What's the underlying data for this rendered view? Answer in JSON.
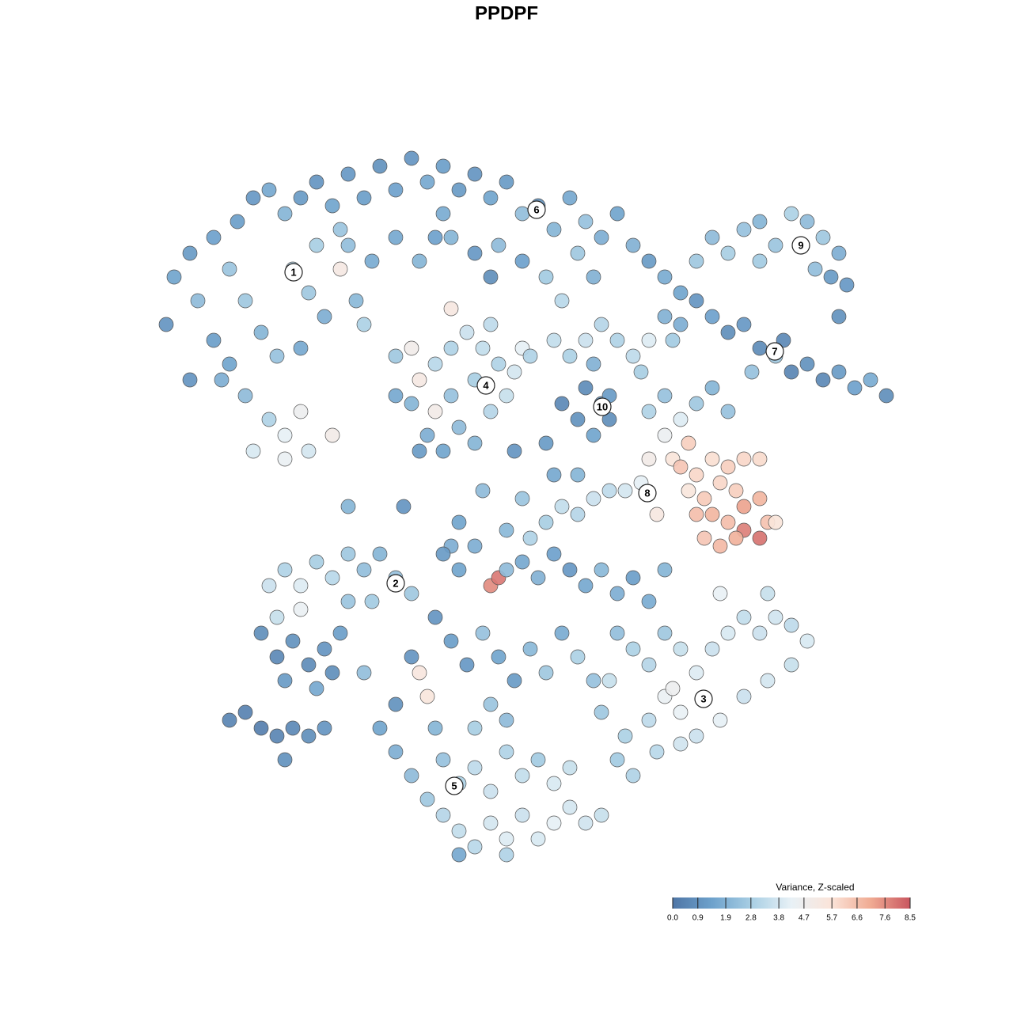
{
  "chart_data": {
    "type": "scatter",
    "title": "PPDPF",
    "xlim": [
      0,
      128
    ],
    "ylim": [
      128,
      0
    ],
    "x": [
      22,
      24,
      21,
      25,
      27,
      29,
      30,
      32,
      34,
      36,
      38,
      40,
      42,
      44,
      46,
      48,
      50,
      52,
      54,
      31,
      33,
      35,
      29,
      31,
      34,
      36,
      39,
      42,
      38,
      27,
      28,
      37,
      40,
      43,
      43,
      45,
      41,
      38,
      24,
      32,
      36,
      44,
      47,
      50,
      53,
      55,
      39,
      46,
      56,
      58,
      60,
      62,
      64,
      66,
      68,
      70,
      72,
      74,
      76,
      78,
      80,
      82,
      84,
      57,
      60,
      63,
      66,
      69,
      71,
      73,
      62,
      56,
      75,
      86,
      88,
      90,
      92,
      94,
      96,
      98,
      100,
      102,
      104,
      106,
      105,
      103,
      107,
      106,
      96,
      86,
      88,
      90,
      92,
      94,
      96,
      98,
      100,
      102,
      104,
      106,
      108,
      110,
      112,
      99,
      85,
      84,
      95,
      50,
      52,
      53,
      55,
      57,
      59,
      61,
      63,
      60,
      57,
      55,
      52,
      54,
      58,
      62,
      64,
      60,
      56,
      53,
      50,
      57,
      62,
      65,
      66,
      67,
      70,
      72,
      74,
      76,
      78,
      80,
      82,
      81,
      75,
      74,
      76,
      77,
      75,
      73,
      71,
      77,
      82,
      84,
      86,
      88,
      90,
      92,
      84,
      85,
      87,
      86,
      88,
      90,
      92,
      94,
      96,
      87,
      89,
      91,
      93,
      90,
      92,
      94,
      96,
      97,
      94,
      96,
      89,
      91,
      93,
      98,
      88,
      82,
      79,
      81,
      77,
      75,
      73,
      71,
      69,
      67,
      83,
      44,
      51,
      58,
      61,
      66,
      70,
      73,
      65,
      69,
      57,
      64,
      34,
      36,
      38,
      40,
      42,
      44,
      46,
      48,
      50,
      52,
      38,
      44,
      47,
      35,
      33,
      35,
      37,
      39,
      41,
      43,
      36,
      40,
      42,
      46,
      29,
      31,
      33,
      35,
      37,
      39,
      36,
      41,
      56,
      58,
      60,
      62,
      63,
      64,
      66,
      68,
      70,
      72,
      74,
      76,
      78,
      80,
      82,
      84,
      55,
      57,
      59,
      61,
      63,
      65,
      67,
      69,
      71,
      73,
      75,
      53,
      54,
      52,
      50,
      48,
      50,
      52,
      54,
      56,
      58,
      60,
      62,
      64,
      66,
      68,
      70,
      72,
      74,
      76,
      56,
      58,
      60,
      62,
      64,
      66,
      68,
      70,
      72,
      60,
      62,
      64,
      55,
      58,
      64,
      78,
      80,
      82,
      84,
      86,
      88,
      90,
      92,
      94,
      96,
      98,
      100,
      102,
      100,
      97,
      94,
      91,
      88,
      86,
      84,
      82,
      79,
      78,
      80,
      83,
      86,
      76,
      77,
      91,
      97,
      85
    ],
    "y": [
      35,
      32,
      41,
      38,
      30,
      34,
      28,
      25,
      24,
      27,
      25,
      23,
      26,
      22,
      25,
      21,
      24,
      20,
      23,
      38,
      42,
      45,
      46,
      50,
      53,
      55,
      57,
      55,
      52,
      43,
      48,
      34,
      31,
      29,
      34,
      38,
      40,
      44,
      48,
      57,
      58,
      31,
      33,
      30,
      33,
      30,
      37,
      41,
      21,
      24,
      22,
      25,
      23,
      27,
      26,
      29,
      25,
      28,
      30,
      27,
      31,
      33,
      35,
      30,
      32,
      31,
      33,
      35,
      38,
      32,
      35,
      27,
      35,
      37,
      33,
      30,
      32,
      29,
      28,
      31,
      27,
      28,
      30,
      32,
      35,
      34,
      36,
      40,
      33,
      41,
      38,
      40,
      42,
      41,
      44,
      45,
      47,
      46,
      48,
      47,
      49,
      48,
      50,
      43,
      43,
      40,
      47,
      45,
      44,
      48,
      46,
      44,
      42,
      44,
      46,
      48,
      50,
      52,
      51,
      55,
      54,
      52,
      50,
      56,
      57,
      57,
      50,
      39,
      41,
      47,
      44,
      45,
      43,
      45,
      43,
      41,
      43,
      45,
      43,
      47,
      46,
      49,
      51,
      53,
      55,
      53,
      51,
      50,
      52,
      50,
      53,
      51,
      49,
      52,
      55,
      58,
      56,
      59,
      60,
      58,
      59,
      58,
      58,
      62,
      63,
      61,
      62,
      65,
      66,
      64,
      63,
      66,
      67,
      68,
      68,
      69,
      68,
      66,
      65,
      58,
      62,
      61,
      62,
      63,
      65,
      64,
      66,
      68,
      65,
      64,
      64,
      66,
      62,
      63,
      60,
      60,
      57,
      56,
      69,
      67,
      74,
      72,
      74,
      71,
      73,
      70,
      72,
      70,
      73,
      75,
      77,
      76,
      76,
      78,
      80,
      83,
      81,
      84,
      82,
      80,
      86,
      87,
      85,
      85,
      91,
      90,
      92,
      93,
      92,
      93,
      96,
      92,
      70,
      72,
      69,
      74,
      73,
      72,
      71,
      73,
      70,
      72,
      74,
      72,
      75,
      73,
      76,
      72,
      78,
      81,
      84,
      80,
      83,
      86,
      82,
      85,
      80,
      83,
      86,
      85,
      88,
      83,
      89,
      92,
      95,
      98,
      101,
      103,
      105,
      107,
      104,
      106,
      103,
      106,
      104,
      102,
      104,
      103,
      96,
      99,
      97,
      100,
      95,
      98,
      96,
      99,
      97,
      92,
      89,
      91,
      92,
      108,
      108,
      80,
      82,
      84,
      80,
      82,
      85,
      82,
      80,
      78,
      80,
      78,
      79,
      81,
      84,
      86,
      88,
      91,
      93,
      90,
      88,
      91,
      93,
      96,
      98,
      95,
      94,
      90,
      86,
      75,
      75,
      87
    ],
    "values": [
      1.5,
      1.2,
      1.0,
      2.2,
      1.4,
      2.5,
      1.3,
      1.1,
      1.6,
      2.0,
      1.2,
      1.0,
      1.5,
      1.1,
      1.3,
      0.9,
      1.4,
      1.0,
      1.6,
      2.6,
      2.0,
      2.4,
      1.5,
      2.2,
      3.0,
      4.2,
      3.8,
      5.0,
      4.6,
      1.3,
      1.8,
      3.0,
      2.8,
      2.5,
      5.2,
      2.1,
      1.8,
      1.6,
      1.0,
      3.9,
      4.4,
      2.3,
      1.7,
      1.6,
      2.0,
      1.4,
      2.6,
      2.9,
      1.3,
      1.2,
      1.0,
      1.5,
      1.2,
      2.3,
      0.9,
      2.0,
      1.6,
      2.4,
      1.8,
      1.5,
      1.9,
      1.2,
      1.7,
      2.0,
      1.1,
      2.2,
      1.4,
      2.7,
      3.2,
      2.6,
      0.8,
      1.7,
      1.9,
      1.5,
      2.6,
      2.2,
      2.8,
      2.4,
      2.0,
      2.5,
      2.9,
      2.2,
      2.6,
      1.8,
      1.2,
      2.3,
      1.1,
      0.9,
      2.7,
      1.8,
      1.0,
      1.4,
      0.8,
      1.1,
      0.7,
      2.6,
      0.5,
      0.9,
      0.6,
      1.2,
      1.4,
      1.7,
      0.8,
      0.6,
      2.7,
      1.9,
      2.4,
      2.6,
      4.9,
      5.2,
      3.2,
      3.0,
      3.6,
      3.4,
      3.0,
      2.8,
      2.4,
      5.0,
      2.0,
      1.8,
      2.2,
      3.1,
      3.5,
      2.0,
      1.5,
      1.2,
      1.6,
      5.3,
      3.3,
      3.8,
      4.2,
      3.0,
      3.4,
      2.9,
      3.6,
      3.1,
      3.0,
      3.3,
      4.0,
      2.8,
      1.9,
      0.7,
      0.9,
      0.8,
      1.5,
      0.9,
      0.6,
      1.2,
      3.0,
      2.4,
      4.0,
      2.6,
      2.0,
      2.4,
      4.5,
      5.6,
      6.2,
      6.4,
      6.0,
      5.8,
      6.2,
      6.0,
      5.9,
      5.5,
      6.3,
      6.0,
      6.2,
      6.8,
      6.6,
      7.2,
      6.8,
      6.5,
      7.8,
      8.0,
      6.4,
      6.7,
      6.9,
      5.6,
      6.6,
      5.0,
      3.8,
      4.2,
      3.3,
      3.6,
      3.1,
      3.4,
      2.8,
      3.0,
      5.3,
      2.0,
      1.0,
      1.5,
      2.2,
      2.5,
      1.6,
      2.0,
      1.0,
      1.2,
      1.8,
      2.1,
      3.6,
      3.0,
      4.0,
      2.8,
      3.2,
      2.6,
      2.3,
      2.0,
      2.4,
      2.6,
      4.4,
      2.5,
      2.7,
      3.5,
      0.8,
      0.6,
      0.9,
      0.7,
      1.0,
      1.3,
      1.2,
      1.6,
      0.8,
      2.3,
      0.5,
      0.4,
      0.3,
      0.5,
      0.6,
      0.8,
      0.9,
      1.0,
      1.2,
      1.5,
      1.8,
      7.6,
      7.9,
      2.2,
      1.6,
      1.9,
      1.4,
      1.1,
      1.6,
      2.1,
      1.8,
      1.3,
      1.7,
      2.0,
      1.0,
      1.3,
      1.1,
      2.4,
      1.5,
      1.2,
      2.1,
      2.6,
      1.7,
      2.9,
      2.4,
      5.4,
      5.5,
      1.0,
      0.9,
      1.5,
      1.8,
      2.2,
      2.6,
      3.1,
      3.4,
      3.2,
      3.8,
      4.0,
      3.6,
      3.9,
      4.2,
      3.8,
      3.7,
      3.5,
      2.4,
      2.9,
      3.3,
      3.6,
      3.0,
      3.4,
      2.7,
      3.9,
      3.5,
      2.8,
      2.5,
      2.2,
      2.0,
      1.6,
      3.0,
      2.3,
      2.9,
      3.1,
      2.6,
      3.5,
      4.0,
      3.6,
      3.9,
      3.4,
      3.6,
      3.7,
      3.3,
      3.9,
      3.5,
      3.8,
      3.6,
      4.2,
      3.6,
      4.3,
      4.4,
      3.3,
      2.9,
      2.7,
      3.0,
      3.2,
      3.7,
      2.6,
      3.5,
      4.3,
      3.5,
      4.6
    ],
    "labels": [
      {
        "text": "1",
        "x": 37.1,
        "y": 34.4
      },
      {
        "text": "2",
        "x": 50,
        "y": 73.7
      },
      {
        "text": "3",
        "x": 88.9,
        "y": 88.3
      },
      {
        "text": "4",
        "x": 61.4,
        "y": 48.7
      },
      {
        "text": "5",
        "x": 57.4,
        "y": 99.3
      },
      {
        "text": "6",
        "x": 67.8,
        "y": 26.5
      },
      {
        "text": "7",
        "x": 97.9,
        "y": 44.4
      },
      {
        "text": "8",
        "x": 81.8,
        "y": 62.3
      },
      {
        "text": "9",
        "x": 101.2,
        "y": 31
      },
      {
        "text": "10",
        "x": 76.1,
        "y": 51.4
      }
    ],
    "colorbar": {
      "title": "Variance, Z-scaled",
      "lim": [
        0,
        8.5
      ],
      "ticks": [
        {
          "value": 0,
          "label": "0.0"
        },
        0.9,
        1.9,
        2.8,
        3.8,
        4.7,
        5.7,
        6.6,
        7.6,
        8.5
      ],
      "colors": [
        "#4f76a6",
        "#6ea2cc",
        "#a9cfe4",
        "#e8f1f6",
        "#fbe4d9",
        "#f0ab93",
        "#c9565f"
      ]
    }
  }
}
